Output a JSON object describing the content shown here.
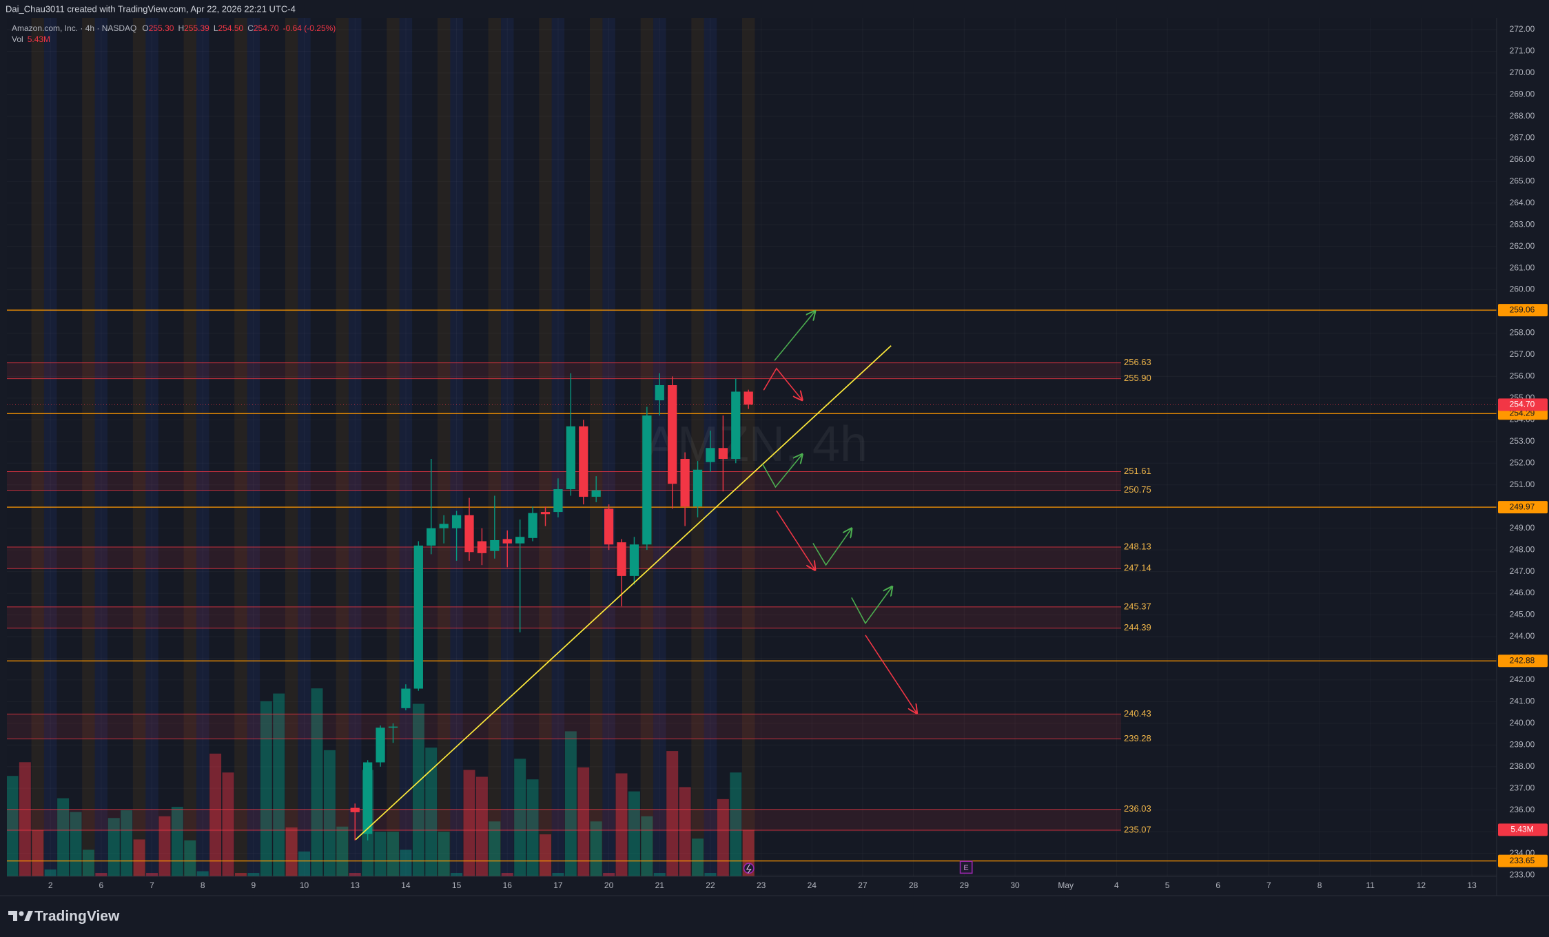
{
  "chart_data": {
    "type": "candlestick",
    "credit": "Dai_Chau3011 created with TradingView.com, Apr 22, 2026 22:21 UTC-4",
    "legend": {
      "symbol": "Amazon.com, Inc. · 4h · NASDAQ",
      "o": "O",
      "open": "255.30",
      "h": "H",
      "high": "255.39",
      "l": "L",
      "low": "254.50",
      "c": "C",
      "close": "254.70",
      "change": "-0.64 (-0.25%)",
      "vol": "Vol",
      "volume": "5.43M"
    },
    "watermark": "AMZN, 4h",
    "brand": "TradingView",
    "event": "E",
    "x": [
      24,
      25,
      26,
      27,
      28,
      29,
      30,
      31,
      32,
      33,
      34,
      35,
      36,
      37,
      38,
      39,
      40,
      41,
      42,
      43,
      44,
      45,
      46,
      47,
      48,
      49,
      50,
      51,
      52,
      53,
      54,
      55
    ],
    "open": [
      236.1,
      234.9,
      238.2,
      239.8,
      240.7,
      241.6,
      248.2,
      249.0,
      249.0,
      249.6,
      248.4,
      247.95,
      248.5,
      248.3,
      248.55,
      249.75,
      249.75,
      250.8,
      253.7,
      250.45,
      249.9,
      248.35,
      246.8,
      248.25,
      254.9,
      255.6,
      252.2,
      250.0,
      252.05,
      252.7,
      252.2,
      255.3
    ],
    "high": [
      236.3,
      238.3,
      239.9,
      240.0,
      241.8,
      248.4,
      252.2,
      249.6,
      249.8,
      250.4,
      249.0,
      250.5,
      248.9,
      249.4,
      250.0,
      250.0,
      251.3,
      256.15,
      254.0,
      251.4,
      250.1,
      248.5,
      248.6,
      254.6,
      256.15,
      256.0,
      252.5,
      252.1,
      253.5,
      254.2,
      255.9,
      255.39
    ],
    "low": [
      234.6,
      234.6,
      238.0,
      239.1,
      240.6,
      241.5,
      247.8,
      248.3,
      247.5,
      247.5,
      247.3,
      247.6,
      247.2,
      244.2,
      248.4,
      249.1,
      249.5,
      250.5,
      250.1,
      250.2,
      248.0,
      245.4,
      246.4,
      248.0,
      254.2,
      249.9,
      249.1,
      249.5,
      251.6,
      250.7,
      252.0,
      254.5
    ],
    "close": [
      235.9,
      238.2,
      239.8,
      239.85,
      241.6,
      248.2,
      249.0,
      249.2,
      249.6,
      247.9,
      247.85,
      248.45,
      248.3,
      248.6,
      249.7,
      249.65,
      250.8,
      253.7,
      250.45,
      250.75,
      248.25,
      246.8,
      248.25,
      254.2,
      255.6,
      251.05,
      250.0,
      251.7,
      252.7,
      252.2,
      255.3,
      254.7
    ],
    "up_color": "#089981",
    "down_color": "#f23645",
    "volume": {
      "x": [
        -3,
        -2,
        -1,
        0,
        1,
        2,
        3,
        4,
        5,
        6,
        7,
        8,
        9,
        10,
        11,
        12,
        13,
        14,
        15,
        16,
        17,
        18,
        19,
        20,
        21,
        22,
        23,
        24,
        25,
        26,
        27,
        28,
        29,
        30,
        31,
        32,
        33,
        34,
        35,
        36,
        37,
        38,
        39,
        40,
        41,
        42,
        43,
        44,
        45,
        46,
        47,
        48,
        49,
        50,
        51,
        52,
        53,
        54,
        55
      ],
      "values": [
        11.7,
        13.3,
        5.4,
        0.8,
        9.1,
        7.5,
        3.1,
        0.4,
        6.8,
        7.7,
        4.3,
        0.4,
        7.0,
        8.1,
        4.2,
        0.6,
        14.3,
        12.1,
        0.4,
        0.4,
        20.4,
        21.3,
        5.7,
        2.9,
        21.9,
        14.7,
        5.8,
        0.4,
        12.4,
        5.2,
        5.2,
        3.1,
        20.1,
        15.0,
        5.2,
        0.4,
        12.4,
        11.6,
        6.4,
        0.4,
        13.7,
        11.3,
        4.9,
        0.4,
        16.9,
        12.7,
        6.4,
        0.4,
        12.0,
        9.9,
        7.0,
        0.4,
        14.6,
        10.4,
        4.4,
        0.4,
        9.0,
        12.1,
        5.43
      ],
      "up": [
        true,
        false,
        false,
        true,
        true,
        true,
        true,
        false,
        true,
        true,
        false,
        false,
        false,
        true,
        true,
        true,
        false,
        false,
        false,
        true,
        true,
        true,
        false,
        true,
        true,
        true,
        true,
        false,
        true,
        true,
        true,
        true,
        true,
        true,
        true,
        true,
        false,
        false,
        true,
        false,
        true,
        true,
        false,
        true,
        true,
        false,
        true,
        false,
        false,
        true,
        true,
        true,
        false,
        false,
        true,
        true,
        false,
        true,
        false
      ],
      "vlim": [
        0,
        100
      ],
      "up_color": "rgba(8,153,129,0.45)",
      "down_color": "rgba(242,54,69,0.45)"
    },
    "xlim": [
      -3.43,
      113.95
    ],
    "ylim": [
      232.94,
      272.54
    ],
    "xticks": [
      {
        "value": 0,
        "label": "2"
      },
      {
        "value": 4,
        "label": "6"
      },
      {
        "value": 8,
        "label": "7"
      },
      {
        "value": 12,
        "label": "8"
      },
      {
        "value": 16,
        "label": "9"
      },
      {
        "value": 20,
        "label": "10"
      },
      {
        "value": 24,
        "label": "13"
      },
      {
        "value": 28,
        "label": "14"
      },
      {
        "value": 32,
        "label": "15"
      },
      {
        "value": 36,
        "label": "16"
      },
      {
        "value": 40,
        "label": "17"
      },
      {
        "value": 44,
        "label": "20"
      },
      {
        "value": 48,
        "label": "21"
      },
      {
        "value": 52,
        "label": "22"
      },
      {
        "value": 56,
        "label": "23"
      },
      {
        "value": 60,
        "label": "24"
      },
      {
        "value": 64,
        "label": "27"
      },
      {
        "value": 68,
        "label": "28"
      },
      {
        "value": 72,
        "label": "29"
      },
      {
        "value": 76,
        "label": "30"
      },
      {
        "value": 80,
        "label": "May"
      },
      {
        "value": 84,
        "label": "4"
      },
      {
        "value": 88,
        "label": "5"
      },
      {
        "value": 92,
        "label": "6"
      },
      {
        "value": 96,
        "label": "7"
      },
      {
        "value": 100,
        "label": "8"
      },
      {
        "value": 104,
        "label": "11"
      },
      {
        "value": 108,
        "label": "12"
      },
      {
        "value": 112,
        "label": "13"
      }
    ],
    "yticks": [
      {
        "value": 233,
        "label": "233.00"
      },
      {
        "value": 234,
        "label": "234.00"
      },
      {
        "value": 235,
        "label": "235.00"
      },
      {
        "value": 236,
        "label": "236.00"
      },
      {
        "value": 237,
        "label": "237.00"
      },
      {
        "value": 238,
        "label": "238.00"
      },
      {
        "value": 239,
        "label": "239.00"
      },
      {
        "value": 240,
        "label": "240.00"
      },
      {
        "value": 241,
        "label": "241.00"
      },
      {
        "value": 242,
        "label": "242.00"
      },
      {
        "value": 243,
        "label": "243.00"
      },
      {
        "value": 244,
        "label": "244.00"
      },
      {
        "value": 245,
        "label": "245.00"
      },
      {
        "value": 246,
        "label": "246.00"
      },
      {
        "value": 247,
        "label": "247.00"
      },
      {
        "value": 248,
        "label": "248.00"
      },
      {
        "value": 249,
        "label": "249.00"
      },
      {
        "value": 250,
        "label": "250.00"
      },
      {
        "value": 251,
        "label": "251.00"
      },
      {
        "value": 252,
        "label": "252.00"
      },
      {
        "value": 253,
        "label": "253.00"
      },
      {
        "value": 254,
        "label": "254.00"
      },
      {
        "value": 255,
        "label": "255.00"
      },
      {
        "value": 256,
        "label": "256.00"
      },
      {
        "value": 257,
        "label": "257.00"
      },
      {
        "value": 258,
        "label": "258.00"
      },
      {
        "value": 259,
        "label": "259.00"
      },
      {
        "value": 260,
        "label": "260.00"
      },
      {
        "value": 261,
        "label": "261.00"
      },
      {
        "value": 262,
        "label": "262.00"
      },
      {
        "value": 263,
        "label": "263.00"
      },
      {
        "value": 264,
        "label": "264.00"
      },
      {
        "value": 265,
        "label": "265.00"
      },
      {
        "value": 266,
        "label": "266.00"
      },
      {
        "value": 267,
        "label": "267.00"
      },
      {
        "value": 268,
        "label": "268.00"
      },
      {
        "value": 269,
        "label": "269.00"
      },
      {
        "value": 270,
        "label": "270.00"
      },
      {
        "value": 271,
        "label": "271.00"
      },
      {
        "value": 272,
        "label": "272.00"
      }
    ],
    "grid": true,
    "zones": [
      {
        "top": {
          "value": 256.63,
          "label": "256.63"
        },
        "bottom": {
          "value": 255.9,
          "label": "255.90"
        }
      },
      {
        "top": {
          "value": 251.61,
          "label": "251.61"
        },
        "bottom": {
          "value": 250.75,
          "label": "250.75"
        }
      },
      {
        "top": {
          "value": 248.13,
          "label": "248.13"
        },
        "bottom": {
          "value": 247.14,
          "label": "247.14"
        }
      },
      {
        "top": {
          "value": 245.37,
          "label": "245.37"
        },
        "bottom": {
          "value": 244.39,
          "label": "244.39"
        }
      },
      {
        "top": {
          "value": 240.43,
          "label": "240.43"
        },
        "bottom": {
          "value": 239.28,
          "label": "239.28"
        }
      },
      {
        "top": {
          "value": 236.03,
          "label": "236.03"
        },
        "bottom": {
          "value": 235.07,
          "label": "235.07"
        }
      }
    ],
    "zone_color": "#f23645",
    "levels": [
      {
        "value": 259.06,
        "label": "259.06"
      },
      {
        "value": 254.29,
        "label": "254.29"
      },
      {
        "value": 249.97,
        "label": "249.97"
      },
      {
        "value": 242.88,
        "label": "242.88"
      },
      {
        "value": 233.65,
        "label": "233.65"
      }
    ],
    "level_color": "#ff9800",
    "last_price": {
      "value": 254.7,
      "label": "254.70"
    },
    "last_volume": {
      "value": 5.43,
      "label": "5.43M"
    }
  }
}
